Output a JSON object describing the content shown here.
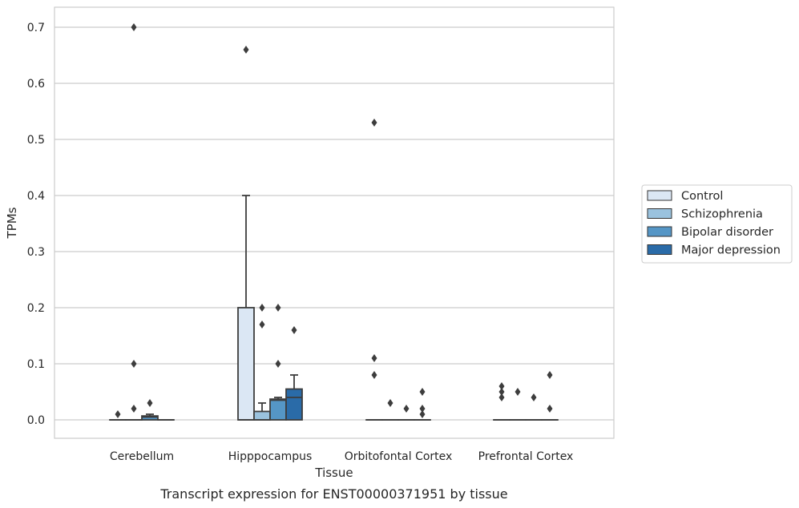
{
  "chart_data": {
    "type": "box",
    "title": "",
    "xlabel": "Tissue",
    "ylabel": "TPMs",
    "caption": "Transcript expression for ENST00000371951 by tissue",
    "ylim": [
      -0.035,
      0.735
    ],
    "yticks": [
      "0.0",
      "0.1",
      "0.2",
      "0.3",
      "0.4",
      "0.5",
      "0.6",
      "0.7"
    ],
    "grid": true,
    "legend_position": "right",
    "categories": [
      "Cerebellum",
      "Hipppocampus",
      "Orbitofontal Cortex",
      "Prefrontal Cortex"
    ],
    "series": [
      {
        "name": "Control",
        "color": "#dbe7f4",
        "boxes": [
          {
            "q1": 0,
            "median": 0,
            "q3": 0,
            "whislo": 0,
            "whishi": 0,
            "fliers": [
              0.01
            ]
          },
          {
            "q1": 0,
            "median": 0,
            "q3": 0.2,
            "whislo": 0,
            "whishi": 0.4,
            "fliers": [
              0.66
            ]
          },
          {
            "q1": 0,
            "median": 0,
            "q3": 0,
            "whislo": 0,
            "whishi": 0,
            "fliers": [
              0.53,
              0.11,
              0.08
            ]
          },
          {
            "q1": 0,
            "median": 0,
            "q3": 0,
            "whislo": 0,
            "whishi": 0,
            "fliers": [
              0.06,
              0.05,
              0.04
            ]
          }
        ]
      },
      {
        "name": "Schizophrenia",
        "color": "#9ac2de",
        "boxes": [
          {
            "q1": 0,
            "median": 0,
            "q3": 0,
            "whislo": 0,
            "whishi": 0,
            "fliers": [
              0.7,
              0.1,
              0.02
            ]
          },
          {
            "q1": 0,
            "median": 0,
            "q3": 0.015,
            "whislo": 0,
            "whishi": 0.03,
            "fliers": [
              0.2,
              0.17
            ]
          },
          {
            "q1": 0,
            "median": 0,
            "q3": 0,
            "whislo": 0,
            "whishi": 0,
            "fliers": [
              0.03
            ]
          },
          {
            "q1": 0,
            "median": 0,
            "q3": 0,
            "whislo": 0,
            "whishi": 0,
            "fliers": [
              0.05
            ]
          }
        ]
      },
      {
        "name": "Bipolar disorder",
        "color": "#5596c6",
        "boxes": [
          {
            "q1": 0,
            "median": 0.005,
            "q3": 0.007,
            "whislo": 0,
            "whishi": 0.01,
            "fliers": [
              0.03
            ]
          },
          {
            "q1": 0,
            "median": 0.035,
            "q3": 0.037,
            "whislo": 0,
            "whishi": 0.04,
            "fliers": [
              0.2,
              0.1
            ]
          },
          {
            "q1": 0,
            "median": 0,
            "q3": 0,
            "whislo": 0,
            "whishi": 0,
            "fliers": [
              0.02
            ]
          },
          {
            "q1": 0,
            "median": 0,
            "q3": 0,
            "whislo": 0,
            "whishi": 0,
            "fliers": [
              0.04
            ]
          }
        ]
      },
      {
        "name": "Major depression",
        "color": "#2a6ba8",
        "boxes": [
          {
            "q1": 0,
            "median": 0,
            "q3": 0,
            "whislo": 0,
            "whishi": 0,
            "fliers": []
          },
          {
            "q1": 0,
            "median": 0.04,
            "q3": 0.055,
            "whislo": 0,
            "whishi": 0.08,
            "fliers": [
              0.16
            ]
          },
          {
            "q1": 0,
            "median": 0,
            "q3": 0,
            "whislo": 0,
            "whishi": 0,
            "fliers": [
              0.05,
              0.02,
              0.01
            ]
          },
          {
            "q1": 0,
            "median": 0,
            "q3": 0,
            "whislo": 0,
            "whishi": 0,
            "fliers": [
              0.08,
              0.02
            ]
          }
        ]
      }
    ]
  }
}
